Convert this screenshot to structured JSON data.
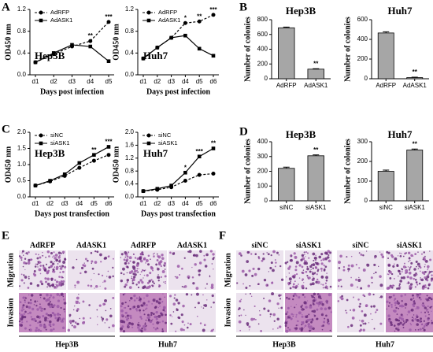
{
  "panel_letters": [
    "A",
    "B",
    "C",
    "D"
  ],
  "chart_data": [
    {
      "type": "line",
      "title": "Hep3B",
      "xlabel": "Days post infection",
      "ylabel": "OD450 nm",
      "categories": [
        "d1",
        "d2",
        "d3",
        "d4",
        "d5"
      ],
      "series": [
        {
          "name": "AdRFP",
          "color": "#000000",
          "dashed": true,
          "marker": "circle",
          "values": [
            0.23,
            0.38,
            0.52,
            0.62,
            0.97
          ]
        },
        {
          "name": "AdASK1",
          "color": "#000000",
          "dashed": false,
          "marker": "square",
          "values": [
            0.23,
            0.4,
            0.55,
            0.52,
            0.25
          ]
        }
      ],
      "ylim": [
        0,
        1.2
      ],
      "yticks": [
        {
          "value": 0,
          "label": "0.0"
        },
        {
          "value": 0.4,
          "label": "0.4"
        },
        {
          "value": 0.8,
          "label": "0.8"
        },
        {
          "value": 1.2,
          "label": "1.2"
        }
      ],
      "legend": "upper left",
      "annotations": [
        {
          "category": "d4",
          "text": "**"
        },
        {
          "category": "d5",
          "text": "***"
        }
      ]
    },
    {
      "type": "line",
      "title": "Huh7",
      "xlabel": "Days post infection",
      "ylabel": "OD450 nm",
      "categories": [
        "d1",
        "d2",
        "d3",
        "d4",
        "d5",
        "d6"
      ],
      "series": [
        {
          "name": "AdRFP",
          "color": "#000000",
          "dashed": true,
          "marker": "circle",
          "values": [
            0.3,
            0.5,
            0.68,
            0.95,
            0.98,
            1.1
          ]
        },
        {
          "name": "AdASK1",
          "color": "#000000",
          "dashed": false,
          "marker": "square",
          "values": [
            0.3,
            0.5,
            0.68,
            0.72,
            0.48,
            0.35
          ]
        }
      ],
      "ylim": [
        0,
        1.2
      ],
      "yticks": [
        {
          "value": 0,
          "label": "0.0"
        },
        {
          "value": 0.4,
          "label": "0.4"
        },
        {
          "value": 0.8,
          "label": "0.8"
        },
        {
          "value": 1.2,
          "label": "1.2"
        }
      ],
      "legend": "upper left",
      "annotations": [
        {
          "category": "d4",
          "text": "*"
        },
        {
          "category": "d5",
          "text": "**"
        },
        {
          "category": "d6",
          "text": "***"
        }
      ]
    },
    {
      "type": "bar",
      "title": "Hep3B",
      "ylabel": "Number of colonies",
      "categories": [
        "AdRFP",
        "AdASK1"
      ],
      "values": [
        690,
        130
      ],
      "errors": [
        10,
        6
      ],
      "color": "#a6a6a6",
      "ylim": [
        0,
        800
      ],
      "yticks": [
        0,
        200,
        400,
        600,
        800
      ],
      "annotations": [
        {
          "category": "AdASK1",
          "text": "**"
        }
      ]
    },
    {
      "type": "bar",
      "title": "Huh7",
      "ylabel": "Number of colonies",
      "categories": [
        "AdRFP",
        "AdASK1"
      ],
      "values": [
        465,
        12
      ],
      "errors": [
        12,
        4
      ],
      "color": "#a6a6a6",
      "ylim": [
        0,
        600
      ],
      "yticks": [
        0,
        200,
        400,
        600
      ],
      "annotations": [
        {
          "category": "AdASK1",
          "text": "**"
        }
      ]
    },
    {
      "type": "line",
      "title": "Hep3B",
      "xlabel": "Days post transfection",
      "ylabel": "OD450 nm",
      "categories": [
        "d1",
        "d2",
        "d3",
        "d4",
        "d5",
        "d6"
      ],
      "series": [
        {
          "name": "siNC",
          "color": "#000000",
          "dashed": true,
          "marker": "circle",
          "values": [
            0.35,
            0.48,
            0.65,
            0.9,
            1.12,
            1.3
          ]
        },
        {
          "name": "siASK1",
          "color": "#000000",
          "dashed": false,
          "marker": "square",
          "values": [
            0.35,
            0.5,
            0.7,
            1.05,
            1.3,
            1.55
          ]
        }
      ],
      "ylim": [
        0,
        2
      ],
      "yticks": [
        {
          "value": 0,
          "label": "0.0"
        },
        {
          "value": 0.5,
          "label": "0.5"
        },
        {
          "value": 1,
          "label": "1.0"
        },
        {
          "value": 1.5,
          "label": "1.5"
        },
        {
          "value": 2,
          "label": "2.0"
        }
      ],
      "legend": "upper left",
      "annotations": [
        {
          "category": "d5",
          "text": "**"
        },
        {
          "category": "d6",
          "text": "***"
        }
      ]
    },
    {
      "type": "line",
      "title": "Huh7",
      "xlabel": "Days post transfection",
      "ylabel": "OD450 nm",
      "categories": [
        "d1",
        "d2",
        "d3",
        "d4",
        "d5",
        "d6"
      ],
      "series": [
        {
          "name": "siNC",
          "color": "#000000",
          "dashed": true,
          "marker": "circle",
          "values": [
            0.18,
            0.22,
            0.3,
            0.5,
            0.68,
            0.72
          ]
        },
        {
          "name": "siASK1",
          "color": "#000000",
          "dashed": false,
          "marker": "square",
          "values": [
            0.18,
            0.25,
            0.35,
            0.75,
            1.25,
            1.5
          ]
        }
      ],
      "ylim": [
        0,
        2
      ],
      "yticks": [
        {
          "value": 0,
          "label": "0.0"
        },
        {
          "value": 0.4,
          "label": "0.4"
        },
        {
          "value": 0.8,
          "label": "0.8"
        },
        {
          "value": 1.2,
          "label": "1.2"
        },
        {
          "value": 1.6,
          "label": "1.6"
        },
        {
          "value": 2,
          "label": "2.0"
        }
      ],
      "legend": "upper left",
      "annotations": [
        {
          "category": "d4",
          "text": "*"
        },
        {
          "category": "d5",
          "text": "***"
        },
        {
          "category": "d6",
          "text": "**"
        }
      ]
    },
    {
      "type": "bar",
      "title": "Hep3B",
      "ylabel": "Number of colonies",
      "categories": [
        "siNC",
        "siASK1"
      ],
      "values": [
        220,
        305
      ],
      "errors": [
        8,
        6
      ],
      "color": "#a6a6a6",
      "ylim": [
        0,
        400
      ],
      "yticks": [
        0,
        100,
        200,
        300,
        400
      ],
      "annotations": [
        {
          "category": "siASK1",
          "text": "**"
        }
      ]
    },
    {
      "type": "bar",
      "title": "Huh7",
      "ylabel": "Number of colonies",
      "categories": [
        "siNC",
        "siASK1"
      ],
      "values": [
        150,
        258
      ],
      "errors": [
        6,
        5
      ],
      "color": "#a6a6a6",
      "ylim": [
        0,
        300
      ],
      "yticks": [
        0,
        100,
        200,
        300
      ],
      "annotations": [
        {
          "category": "siASK1",
          "text": "**"
        }
      ]
    }
  ],
  "image_panels": [
    {
      "letter": "E",
      "columns": [
        "AdRFP",
        "AdASK1",
        "AdRFP",
        "AdASK1"
      ],
      "rows": [
        "Migration",
        "Invasion"
      ],
      "groups": [
        "Hep3B",
        "Huh7"
      ]
    },
    {
      "letter": "F",
      "columns": [
        "siNC",
        "siASK1",
        "siNC",
        "siASK1"
      ],
      "rows": [
        "Migration",
        "Invasion"
      ],
      "groups": [
        "Hep3B",
        "Huh7"
      ]
    }
  ]
}
